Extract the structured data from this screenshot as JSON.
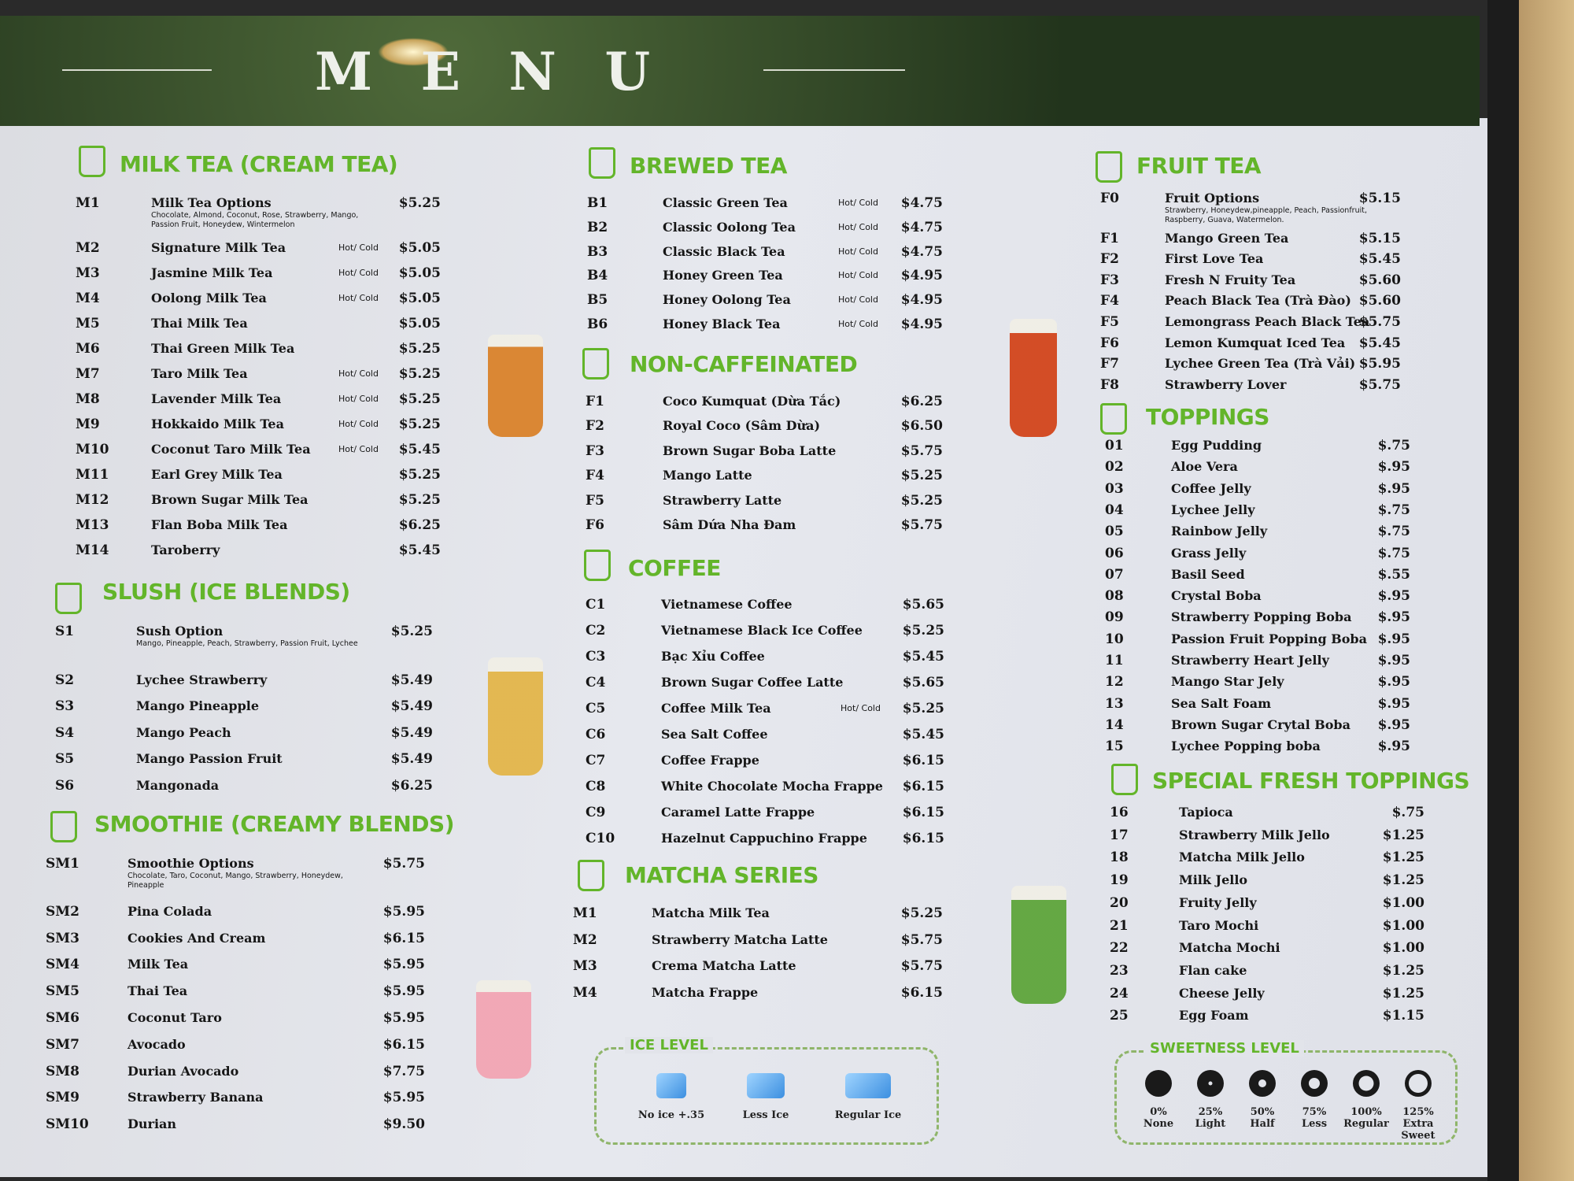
{
  "banner": {
    "title_letters": [
      "M",
      "E",
      "N",
      "U"
    ]
  },
  "colors": {
    "accent": "#63b52a",
    "board": "#e2e4ea",
    "text": "#161616"
  },
  "sections": {
    "milk_tea": {
      "title": "MILK TEA (CREAM TEA)",
      "icon": "milk-tea-cup-icon",
      "items": [
        {
          "code": "M1",
          "name": "Milk Tea Options",
          "note": "Chocolate, Almond, Coconut, Rose, Strawberry, Mango, Passion Fruit, Honeydew, Wintermelon",
          "price": "$5.25"
        },
        {
          "code": "M2",
          "name": "Signature Milk Tea",
          "hc": "Hot/ Cold",
          "price": "$5.05"
        },
        {
          "code": "M3",
          "name": "Jasmine Milk Tea",
          "hc": "Hot/ Cold",
          "price": "$5.05"
        },
        {
          "code": "M4",
          "name": "Oolong Milk Tea",
          "hc": "Hot/ Cold",
          "price": "$5.05"
        },
        {
          "code": "M5",
          "name": "Thai Milk Tea",
          "price": "$5.05"
        },
        {
          "code": "M6",
          "name": "Thai Green Milk Tea",
          "price": "$5.25"
        },
        {
          "code": "M7",
          "name": "Taro Milk Tea",
          "hc": "Hot/ Cold",
          "price": "$5.25"
        },
        {
          "code": "M8",
          "name": "Lavender Milk Tea",
          "hc": "Hot/ Cold",
          "price": "$5.25"
        },
        {
          "code": "M9",
          "name": "Hokkaido Milk Tea",
          "hc": "Hot/ Cold",
          "price": "$5.25"
        },
        {
          "code": "M10",
          "name": "Coconut Taro Milk Tea",
          "hc": "Hot/ Cold",
          "price": "$5.45"
        },
        {
          "code": "M11",
          "name": "Earl Grey Milk Tea",
          "price": "$5.25"
        },
        {
          "code": "M12",
          "name": "Brown Sugar Milk Tea",
          "price": "$5.25"
        },
        {
          "code": "M13",
          "name": "Flan Boba Milk Tea",
          "price": "$6.25"
        },
        {
          "code": "M14",
          "name": "Taroberry",
          "price": "$5.45"
        }
      ]
    },
    "slush": {
      "title": "SLUSH (ICE BLENDS)",
      "icon": "slush-cup-icon",
      "items": [
        {
          "code": "S1",
          "name": "Sush Option",
          "note": "Mango, Pineapple, Peach, Strawberry, Passion Fruit, Lychee",
          "price": "$5.25"
        },
        {
          "code": "S2",
          "name": "Lychee Strawberry",
          "price": "$5.49"
        },
        {
          "code": "S3",
          "name": "Mango Pineapple",
          "price": "$5.49"
        },
        {
          "code": "S4",
          "name": "Mango Peach",
          "price": "$5.49"
        },
        {
          "code": "S5",
          "name": "Mango Passion Fruit",
          "price": "$5.49"
        },
        {
          "code": "S6",
          "name": "Mangonada",
          "price": "$6.25"
        }
      ]
    },
    "smoothie": {
      "title": "SMOOTHIE (CREAMY BLENDS)",
      "icon": "smoothie-cup-icon",
      "items": [
        {
          "code": "SM1",
          "name": "Smoothie Options",
          "note": "Chocolate, Taro, Coconut, Mango, Strawberry, Honeydew, Pineapple",
          "price": "$5.75"
        },
        {
          "code": "SM2",
          "name": "Pina Colada",
          "price": "$5.95"
        },
        {
          "code": "SM3",
          "name": "Cookies And Cream",
          "price": "$6.15"
        },
        {
          "code": "SM4",
          "name": "Milk Tea",
          "price": "$5.95"
        },
        {
          "code": "SM5",
          "name": "Thai Tea",
          "price": "$5.95"
        },
        {
          "code": "SM6",
          "name": "Coconut Taro",
          "price": "$5.95"
        },
        {
          "code": "SM7",
          "name": "Avocado",
          "price": "$6.15"
        },
        {
          "code": "SM8",
          "name": "Durian Avocado",
          "price": "$7.75"
        },
        {
          "code": "SM9",
          "name": "Strawberry Banana",
          "price": "$5.95"
        },
        {
          "code": "SM10",
          "name": "Durian",
          "price": "$9.50"
        }
      ]
    },
    "brewed": {
      "title": "BREWED TEA",
      "icon": "tea-mug-icon",
      "items": [
        {
          "code": "B1",
          "name": "Classic Green Tea",
          "hc": "Hot/ Cold",
          "price": "$4.75"
        },
        {
          "code": "B2",
          "name": "Classic Oolong Tea",
          "hc": "Hot/ Cold",
          "price": "$4.75"
        },
        {
          "code": "B3",
          "name": "Classic Black Tea",
          "hc": "Hot/ Cold",
          "price": "$4.75"
        },
        {
          "code": "B4",
          "name": "Honey Green Tea",
          "hc": "Hot/ Cold",
          "price": "$4.95"
        },
        {
          "code": "B5",
          "name": "Honey Oolong Tea",
          "hc": "Hot/ Cold",
          "price": "$4.95"
        },
        {
          "code": "B6",
          "name": "Honey Black Tea",
          "hc": "Hot/ Cold",
          "price": "$4.95"
        }
      ]
    },
    "non_caffeinated": {
      "title": "NON-CAFFEINATED",
      "icon": "coconut-icon",
      "items": [
        {
          "code": "F1",
          "name": "Coco Kumquat (Dừa Tắc)",
          "price": "$6.25"
        },
        {
          "code": "F2",
          "name": "Royal Coco (Sâm Dừa)",
          "price": "$6.50"
        },
        {
          "code": "F3",
          "name": "Brown Sugar Boba Latte",
          "price": "$5.75"
        },
        {
          "code": "F4",
          "name": "Mango Latte",
          "price": "$5.25"
        },
        {
          "code": "F5",
          "name": "Strawberry Latte",
          "price": "$5.25"
        },
        {
          "code": "F6",
          "name": "Sâm Dứa Nha Đam",
          "price": "$5.75"
        }
      ]
    },
    "coffee": {
      "title": "COFFEE",
      "icon": "coffee-cup-icon",
      "items": [
        {
          "code": "C1",
          "name": "Vietnamese Coffee",
          "price": "$5.65"
        },
        {
          "code": "C2",
          "name": "Vietnamese Black Ice Coffee",
          "price": "$5.25"
        },
        {
          "code": "C3",
          "name": "Bạc Xỉu Coffee",
          "price": "$5.45"
        },
        {
          "code": "C4",
          "name": "Brown Sugar Coffee Latte",
          "price": "$5.65"
        },
        {
          "code": "C5",
          "name": "Coffee Milk Tea",
          "hc": "Hot/ Cold",
          "price": "$5.25"
        },
        {
          "code": "C6",
          "name": "Sea Salt Coffee",
          "price": "$5.45"
        },
        {
          "code": "C7",
          "name": "Coffee Frappe",
          "price": "$6.15"
        },
        {
          "code": "C8",
          "name": "White Chocolate Mocha Frappe",
          "price": "$6.15"
        },
        {
          "code": "C9",
          "name": "Caramel Latte Frappe",
          "price": "$6.15"
        },
        {
          "code": "C10",
          "name": "Hazelnut Cappuchino Frappe",
          "price": "$6.15"
        }
      ]
    },
    "matcha": {
      "title": "MATCHA SERIES",
      "icon": "leaf-icon",
      "items": [
        {
          "code": "M1",
          "name": "Matcha Milk Tea",
          "price": "$5.25"
        },
        {
          "code": "M2",
          "name": "Strawberry Matcha Latte",
          "price": "$5.75"
        },
        {
          "code": "M3",
          "name": "Crema Matcha Latte",
          "price": "$5.75"
        },
        {
          "code": "M4",
          "name": "Matcha Frappe",
          "price": "$6.15"
        }
      ]
    },
    "fruit_tea": {
      "title": "FRUIT TEA",
      "icon": "cocktail-glass-icon",
      "items": [
        {
          "code": "F0",
          "name": "Fruit Options",
          "note": "Strawberry, Honeydew,pineapple, Peach, Passionfruit, Raspberry, Guava, Watermelon.",
          "price": "$5.15"
        },
        {
          "code": "F1",
          "name": "Mango Green Tea",
          "price": "$5.15"
        },
        {
          "code": "F2",
          "name": "First Love Tea",
          "price": "$5.45"
        },
        {
          "code": "F3",
          "name": "Fresh N Fruity Tea",
          "price": "$5.60"
        },
        {
          "code": "F4",
          "name": "Peach Black Tea (Trà Đào)",
          "price": "$5.60"
        },
        {
          "code": "F5",
          "name": "Lemongrass Peach Black Tea",
          "price": "$5.75"
        },
        {
          "code": "F6",
          "name": "Lemon Kumquat Iced Tea",
          "price": "$5.45"
        },
        {
          "code": "F7",
          "name": "Lychee Green Tea (Trà Vải)",
          "price": "$5.95"
        },
        {
          "code": "F8",
          "name": "Strawberry Lover",
          "price": "$5.75"
        }
      ]
    },
    "toppings": {
      "title": "TOPPINGS",
      "icon": "topping-jar-icon",
      "items": [
        {
          "code": "01",
          "name": "Egg Pudding",
          "price": "$.75"
        },
        {
          "code": "02",
          "name": "Aloe Vera",
          "price": "$.95"
        },
        {
          "code": "03",
          "name": "Coffee Jelly",
          "price": "$.95"
        },
        {
          "code": "04",
          "name": "Lychee Jelly",
          "price": "$.75"
        },
        {
          "code": "05",
          "name": "Rainbow Jelly",
          "price": "$.75"
        },
        {
          "code": "06",
          "name": "Grass Jelly",
          "price": "$.75"
        },
        {
          "code": "07",
          "name": "Basil Seed",
          "price": "$.55"
        },
        {
          "code": "08",
          "name": "Crystal Boba",
          "price": "$.95"
        },
        {
          "code": "09",
          "name": "Strawberry Popping Boba",
          "price": "$.95"
        },
        {
          "code": "10",
          "name": "Passion Fruit Popping Boba",
          "price": "$.95"
        },
        {
          "code": "11",
          "name": "Strawberry Heart Jelly",
          "price": "$.95"
        },
        {
          "code": "12",
          "name": "Mango Star Jely",
          "price": "$.95"
        },
        {
          "code": "13",
          "name": "Sea Salt Foam",
          "price": "$.95"
        },
        {
          "code": "14",
          "name": "Brown Sugar Crytal Boba",
          "price": "$.95"
        },
        {
          "code": "15",
          "name": "Lychee Popping boba",
          "price": "$.95"
        }
      ]
    },
    "special_toppings": {
      "title": "SPECIAL FRESH TOPPINGS",
      "icon": "recycle-leaf-icon",
      "items": [
        {
          "code": "16",
          "name": "Tapioca",
          "price": "$.75"
        },
        {
          "code": "17",
          "name": "Strawberry Milk Jello",
          "price": "$1.25"
        },
        {
          "code": "18",
          "name": "Matcha Milk Jello",
          "price": "$1.25"
        },
        {
          "code": "19",
          "name": "Milk Jello",
          "price": "$1.25"
        },
        {
          "code": "20",
          "name": "Fruity Jelly",
          "price": "$1.00"
        },
        {
          "code": "21",
          "name": "Taro Mochi",
          "price": "$1.00"
        },
        {
          "code": "22",
          "name": "Matcha Mochi",
          "price": "$1.00"
        },
        {
          "code": "23",
          "name": "Flan cake",
          "price": "$1.25"
        },
        {
          "code": "24",
          "name": "Cheese Jelly",
          "price": "$1.25"
        },
        {
          "code": "25",
          "name": "Egg Foam",
          "price": "$1.15"
        }
      ]
    }
  },
  "ice_level": {
    "title": "ICE LEVEL",
    "options": [
      {
        "label": "No ice +.35",
        "cubes": 1
      },
      {
        "label": "Less Ice",
        "cubes": 2
      },
      {
        "label": "Regular Ice",
        "cubes": 3
      }
    ]
  },
  "sweetness_level": {
    "title": "SWEETNESS LEVEL",
    "options": [
      {
        "pct": "0%",
        "label": "None",
        "level": 0
      },
      {
        "pct": "25%",
        "label": "Light",
        "level": 25
      },
      {
        "pct": "50%",
        "label": "Half",
        "level": 50
      },
      {
        "pct": "75%",
        "label": "Less",
        "level": 75
      },
      {
        "pct": "100%",
        "label": "Regular",
        "level": 100
      },
      {
        "pct": "125%",
        "label": "Extra Sweet",
        "level": 125
      }
    ]
  }
}
